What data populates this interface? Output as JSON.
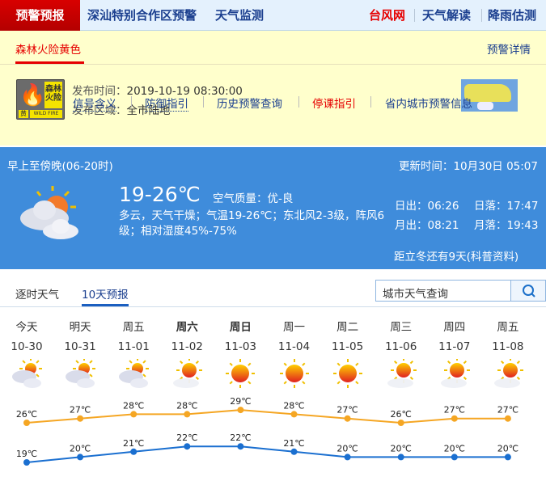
{
  "nav": {
    "active": "预警预报",
    "items": [
      "深汕特别合作区预警",
      "天气监测"
    ],
    "right": [
      "台风网",
      "天气解读",
      "降雨估测"
    ]
  },
  "warning": {
    "title": "森林火险黄色",
    "detail_link": "预警详情",
    "icon_text": {
      "top": "森林火险",
      "level": "黄",
      "en": "WILD FIRE"
    },
    "time_label": "发布时间：",
    "time": "2019-10-19 08:30:00",
    "area_label": "发布区域：",
    "area": "全市陆地",
    "links": [
      "信号含义",
      "防御指引",
      "历史预警查询",
      "停课指引",
      "省内城市预警信息"
    ]
  },
  "now": {
    "period": "早上至傍晚(06-20时)",
    "update_label": "更新时间：",
    "update": "10月30日 05:07",
    "temp": "19-26℃",
    "aq_label": "空气质量：",
    "aq": "优-良",
    "desc": "多云，天气干燥；气温19-26℃；东北风2-3级，阵风6级；相对湿度45%-75%",
    "sunrise": "日出：06:26",
    "sunset": "日落：17:47",
    "moonrise": "月出：08:21",
    "moonset": "月落：19:43",
    "solar_term": "距立冬还有9天(科普资料)"
  },
  "tabs": [
    "逐时天气",
    "10天预报"
  ],
  "search": {
    "placeholder": "城市天气查询"
  },
  "colors": {
    "high": "#f5a623",
    "low": "#1a6fd0",
    "nav_red": "#d80000",
    "panel_blue": "#3f8cdb"
  },
  "chart_data": {
    "type": "line",
    "categories": [
      "今天",
      "明天",
      "周五",
      "周六",
      "周日",
      "周一",
      "周二",
      "周三",
      "周四",
      "周五"
    ],
    "dates": [
      "10-30",
      "10-31",
      "11-01",
      "11-02",
      "11-03",
      "11-04",
      "11-05",
      "11-06",
      "11-07",
      "11-08"
    ],
    "icons": [
      "cloudy",
      "cloudy",
      "cloudy",
      "partly-sunny",
      "sunny",
      "sunny",
      "sunny",
      "partly-sunny",
      "partly-sunny",
      "partly-sunny"
    ],
    "series": [
      {
        "values": [
          26,
          27,
          28,
          28,
          29,
          28,
          27,
          26,
          27,
          27
        ]
      },
      {
        "values": [
          19,
          20,
          21,
          22,
          22,
          21,
          20,
          20,
          20,
          20
        ]
      }
    ],
    "unit": "℃"
  }
}
